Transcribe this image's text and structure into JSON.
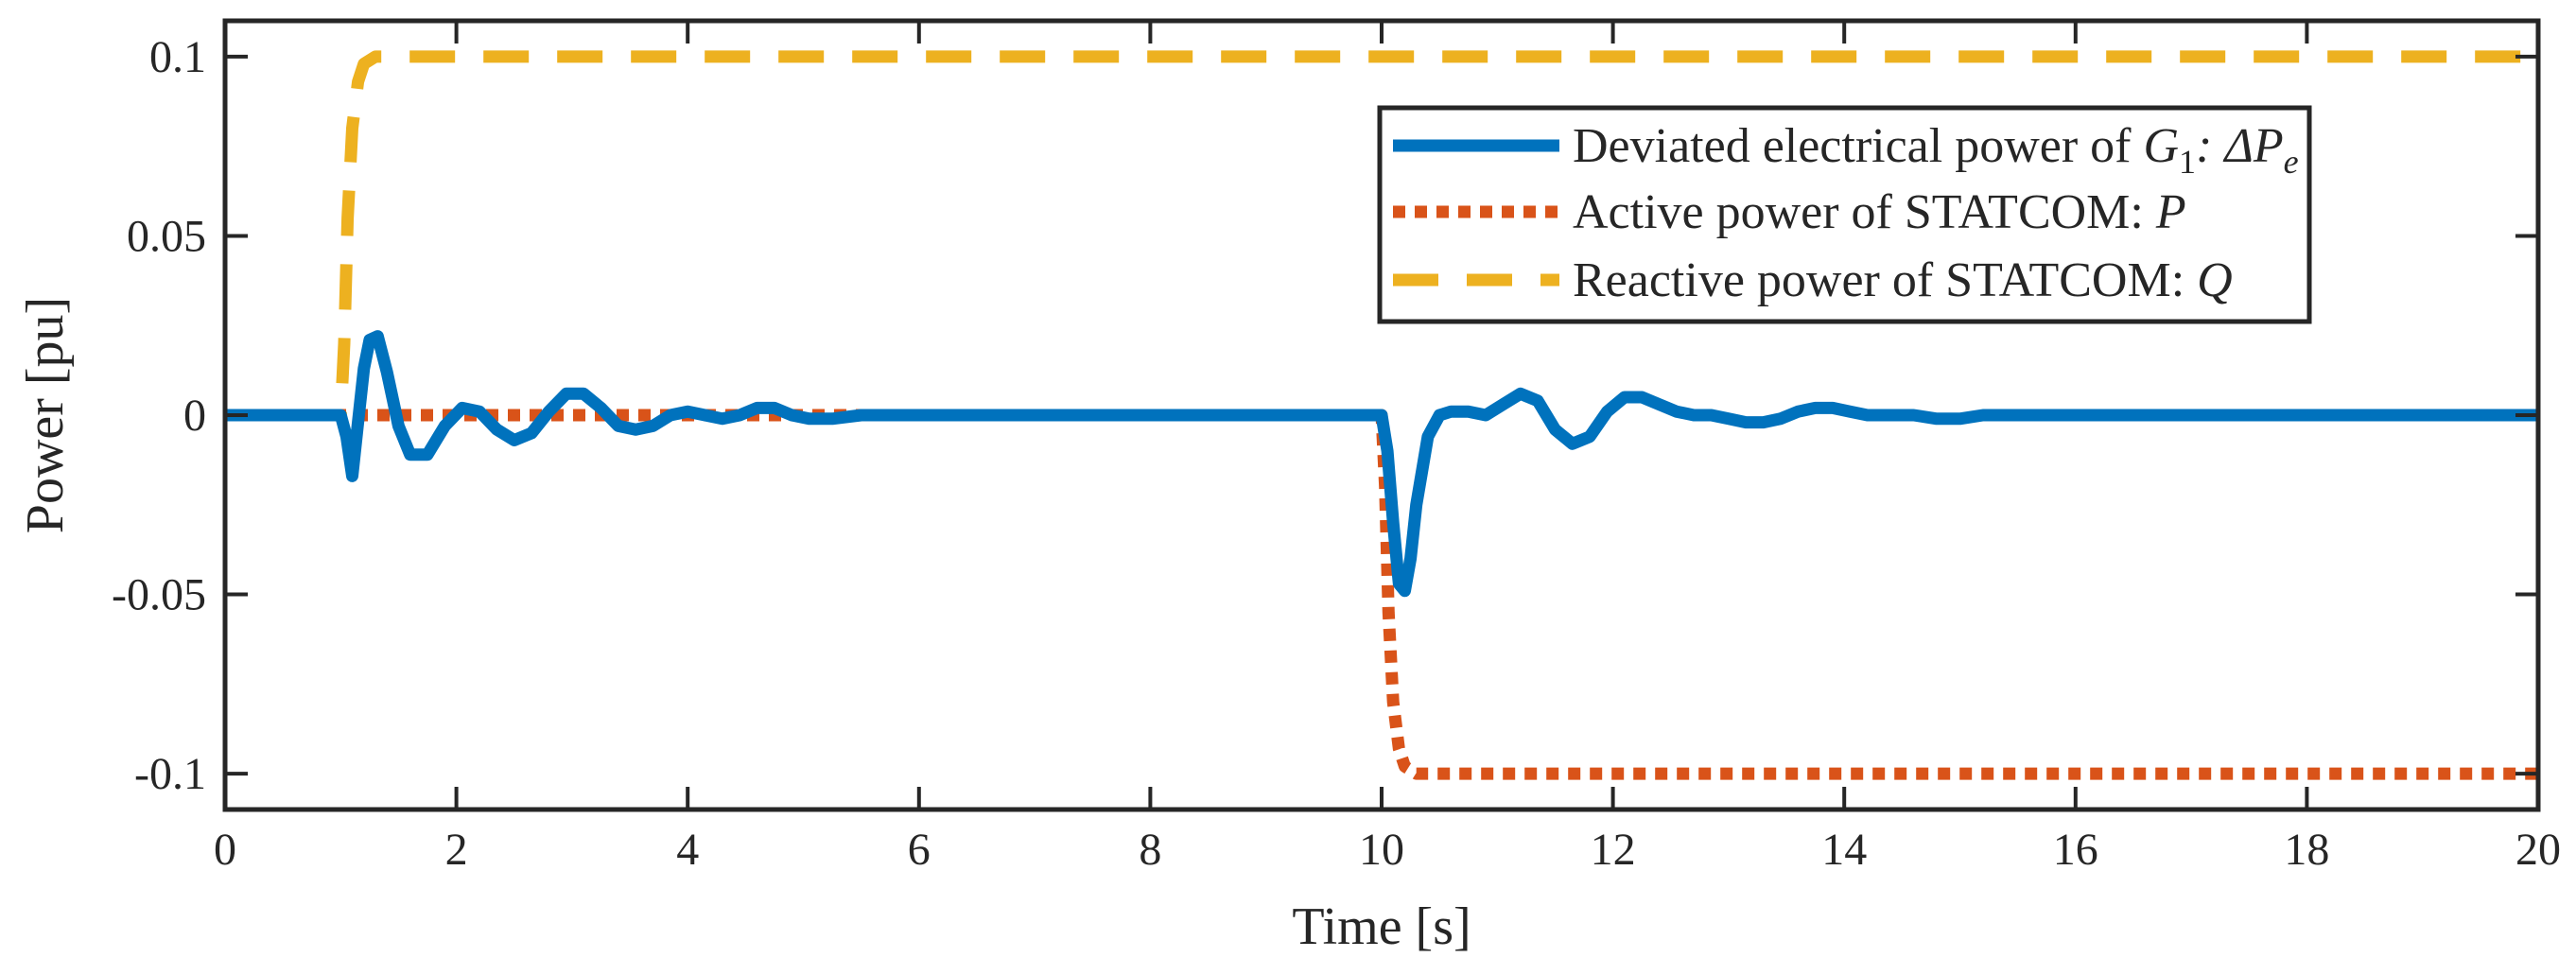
{
  "chart_data": {
    "type": "line",
    "title": "",
    "xlabel": "Time [s]",
    "ylabel": "Power [pu]",
    "xlim": [
      0,
      20
    ],
    "ylim": [
      -0.11,
      0.11
    ],
    "xticks": [
      0,
      2,
      4,
      6,
      8,
      10,
      12,
      14,
      16,
      18,
      20
    ],
    "xtick_labels": [
      "0",
      "2",
      "4",
      "6",
      "8",
      "10",
      "12",
      "14",
      "16",
      "18",
      "20"
    ],
    "yticks": [
      0.1,
      0.05,
      0,
      -0.05,
      -0.1
    ],
    "ytick_labels": [
      "0.1",
      "0.05",
      "0",
      "-0.05",
      "-0.1"
    ],
    "grid": false,
    "legend_position": "top-right",
    "series": [
      {
        "name": "Deviated electrical power of G1: ΔPe",
        "legend_text": "Deviated electrical power of ",
        "legend_math": [
          [
            "G",
            "1",
            ": ΔP",
            "e"
          ]
        ],
        "color": "#0072BD",
        "style": "solid",
        "x": [
          0,
          0.5,
          1.0,
          1.05,
          1.1,
          1.15,
          1.2,
          1.25,
          1.32,
          1.4,
          1.5,
          1.6,
          1.75,
          1.9,
          2.05,
          2.2,
          2.35,
          2.5,
          2.65,
          2.8,
          2.95,
          3.1,
          3.25,
          3.4,
          3.55,
          3.7,
          3.85,
          4.0,
          4.15,
          4.3,
          4.45,
          4.6,
          4.75,
          4.9,
          5.05,
          5.25,
          5.5,
          5.75,
          6.0,
          6.3,
          6.6,
          7.0,
          7.5,
          8.0,
          8.5,
          9.0,
          9.5,
          10.0,
          10.05,
          10.1,
          10.15,
          10.2,
          10.25,
          10.3,
          10.4,
          10.5,
          10.6,
          10.75,
          10.9,
          11.05,
          11.2,
          11.35,
          11.5,
          11.65,
          11.8,
          11.95,
          12.1,
          12.25,
          12.4,
          12.55,
          12.7,
          12.85,
          13.0,
          13.15,
          13.3,
          13.45,
          13.6,
          13.75,
          13.9,
          14.05,
          14.2,
          14.4,
          14.6,
          14.8,
          15.0,
          15.2,
          15.5,
          15.8,
          16.2,
          16.6,
          17.0,
          17.5,
          18.0,
          18.5,
          19.0,
          19.5,
          20.0
        ],
        "y": [
          0,
          0,
          0,
          -0.006,
          -0.017,
          -0.002,
          0.013,
          0.021,
          0.022,
          0.012,
          -0.003,
          -0.011,
          -0.011,
          -0.003,
          0.002,
          0.001,
          -0.004,
          -0.007,
          -0.005,
          0.001,
          0.006,
          0.006,
          0.002,
          -0.003,
          -0.004,
          -0.003,
          0.0,
          0.001,
          0.0,
          -0.001,
          0.0,
          0.002,
          0.002,
          0.0,
          -0.001,
          -0.001,
          0.0,
          0.0,
          0.0,
          0.0,
          0.0,
          0.0,
          0.0,
          0.0,
          0.0,
          0.0,
          0.0,
          0.0,
          -0.01,
          -0.03,
          -0.047,
          -0.049,
          -0.04,
          -0.025,
          -0.006,
          0.0,
          0.001,
          0.001,
          0.0,
          0.003,
          0.006,
          0.004,
          -0.004,
          -0.008,
          -0.006,
          0.001,
          0.005,
          0.005,
          0.003,
          0.001,
          0.0,
          0.0,
          -0.001,
          -0.002,
          -0.002,
          -0.001,
          0.001,
          0.002,
          0.002,
          0.001,
          0.0,
          0.0,
          0.0,
          -0.001,
          -0.001,
          0.0,
          0.0,
          0.0,
          0.0,
          0.0,
          0.0,
          0.0,
          0.0,
          0.0,
          0.0,
          0.0,
          0.0
        ]
      },
      {
        "name": "Active power of STATCOM: P",
        "legend_text": "Active power of STATCOM: ",
        "legend_math": [
          [
            "P"
          ]
        ],
        "color": "#D95319",
        "style": "dotted",
        "x": [
          0,
          1,
          2,
          4,
          6,
          8,
          9.5,
          10.0,
          10.03,
          10.06,
          10.1,
          10.15,
          10.2,
          10.3,
          10.4,
          10.5,
          12,
          14,
          16,
          18,
          20
        ],
        "y": [
          0,
          0,
          0,
          0,
          0,
          0,
          0,
          0,
          -0.02,
          -0.055,
          -0.08,
          -0.093,
          -0.098,
          -0.1,
          -0.1,
          -0.1,
          -0.1,
          -0.1,
          -0.1,
          -0.1,
          -0.1
        ]
      },
      {
        "name": "Reactive power of STATCOM: Q",
        "legend_text": "Reactive power of STATCOM: ",
        "legend_math": [
          [
            "Q"
          ]
        ],
        "color": "#EDB120",
        "style": "dashed",
        "x": [
          0,
          0.5,
          1.0,
          1.03,
          1.06,
          1.1,
          1.15,
          1.2,
          1.3,
          1.4,
          2,
          4,
          6,
          8,
          10,
          12,
          14,
          16,
          18,
          20
        ],
        "y": [
          0,
          0,
          0,
          0.02,
          0.055,
          0.08,
          0.093,
          0.098,
          0.1,
          0.1,
          0.1,
          0.1,
          0.1,
          0.1,
          0.1,
          0.1,
          0.1,
          0.1,
          0.1,
          0.1
        ]
      }
    ]
  }
}
